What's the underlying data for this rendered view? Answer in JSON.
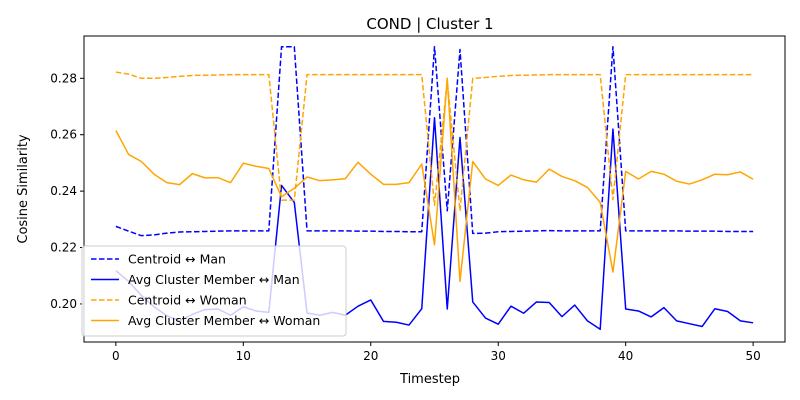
{
  "chart_data": {
    "type": "line",
    "title": "COND | Cluster 1",
    "xlabel": "Timestep",
    "ylabel": "Cosine Similarity",
    "xlim": [
      -2.5,
      52.5
    ],
    "ylim": [
      0.1865,
      0.295
    ],
    "xticks": [
      0,
      10,
      20,
      30,
      40,
      50
    ],
    "yticks": [
      0.2,
      0.22,
      0.24,
      0.26,
      0.28
    ],
    "ytick_labels": [
      "0.20",
      "0.22",
      "0.24",
      "0.26",
      "0.28"
    ],
    "grid": false,
    "legend_position": "lower-left",
    "x": [
      0,
      1,
      2,
      3,
      4,
      5,
      6,
      7,
      8,
      9,
      10,
      11,
      12,
      13,
      14,
      15,
      16,
      17,
      18,
      19,
      20,
      21,
      22,
      23,
      24,
      25,
      26,
      27,
      28,
      29,
      30,
      31,
      32,
      33,
      34,
      35,
      36,
      37,
      38,
      39,
      40,
      41,
      42,
      43,
      44,
      45,
      46,
      47,
      48,
      49,
      50
    ],
    "series": [
      {
        "name": "Centroid ↔ Man",
        "color": "#0000ff",
        "dash": true,
        "values": [
          0.2275,
          0.2258,
          0.2242,
          0.2245,
          0.2251,
          0.2255,
          0.2256,
          0.2257,
          0.2258,
          0.2259,
          0.2259,
          0.2259,
          0.2259,
          0.2912,
          0.2912,
          0.2259,
          0.2259,
          0.2259,
          0.2259,
          0.2258,
          0.2258,
          0.2257,
          0.2257,
          0.2256,
          0.2256,
          0.2912,
          0.233,
          0.2902,
          0.225,
          0.2251,
          0.2256,
          0.2257,
          0.2258,
          0.2259,
          0.226,
          0.2259,
          0.2259,
          0.2259,
          0.2259,
          0.2912,
          0.2259,
          0.2259,
          0.2259,
          0.2259,
          0.2259,
          0.2258,
          0.2258,
          0.2258,
          0.2257,
          0.2257,
          0.2257
        ]
      },
      {
        "name": "Avg Cluster Member ↔ Man",
        "color": "#0000ff",
        "dash": false,
        "values": [
          0.2118,
          0.208,
          0.203,
          0.199,
          0.1958,
          0.194,
          0.1963,
          0.198,
          0.1982,
          0.196,
          0.199,
          0.1975,
          0.197,
          0.242,
          0.236,
          0.1968,
          0.196,
          0.197,
          0.196,
          0.1992,
          0.2014,
          0.1938,
          0.1935,
          0.1925,
          0.1983,
          0.266,
          0.1982,
          0.259,
          0.2007,
          0.195,
          0.1928,
          0.1992,
          0.1967,
          0.2007,
          0.2005,
          0.1955,
          0.1996,
          0.194,
          0.191,
          0.262,
          0.1982,
          0.1975,
          0.1954,
          0.1987,
          0.194,
          0.193,
          0.192,
          0.1983,
          0.1973,
          0.194,
          0.1933
        ]
      },
      {
        "name": "Centroid ↔ Woman",
        "color": "#ffa500",
        "dash": true,
        "values": [
          0.2822,
          0.2815,
          0.28,
          0.28,
          0.2803,
          0.2807,
          0.281,
          0.2811,
          0.2812,
          0.2813,
          0.2813,
          0.2813,
          0.2813,
          0.2368,
          0.2368,
          0.2813,
          0.2813,
          0.2813,
          0.2813,
          0.2813,
          0.2813,
          0.2813,
          0.2813,
          0.2813,
          0.2813,
          0.235,
          0.279,
          0.233,
          0.28,
          0.2803,
          0.2807,
          0.281,
          0.2811,
          0.2812,
          0.2813,
          0.2813,
          0.2813,
          0.2813,
          0.2813,
          0.237,
          0.2813,
          0.2813,
          0.2813,
          0.2813,
          0.2813,
          0.2813,
          0.2813,
          0.2813,
          0.2813,
          0.2813,
          0.2813
        ]
      },
      {
        "name": "Avg Cluster Member ↔ Woman",
        "color": "#ffa500",
        "dash": false,
        "values": [
          0.2615,
          0.253,
          0.2505,
          0.246,
          0.243,
          0.2423,
          0.2462,
          0.2447,
          0.2448,
          0.243,
          0.2499,
          0.2488,
          0.248,
          0.238,
          0.241,
          0.245,
          0.2437,
          0.244,
          0.2444,
          0.2502,
          0.246,
          0.2424,
          0.2424,
          0.243,
          0.2496,
          0.221,
          0.28,
          0.208,
          0.2505,
          0.2443,
          0.242,
          0.2457,
          0.244,
          0.2432,
          0.2478,
          0.2452,
          0.2437,
          0.2413,
          0.236,
          0.2113,
          0.247,
          0.2443,
          0.247,
          0.246,
          0.2435,
          0.2425,
          0.244,
          0.246,
          0.2458,
          0.2468,
          0.2442
        ]
      }
    ]
  }
}
